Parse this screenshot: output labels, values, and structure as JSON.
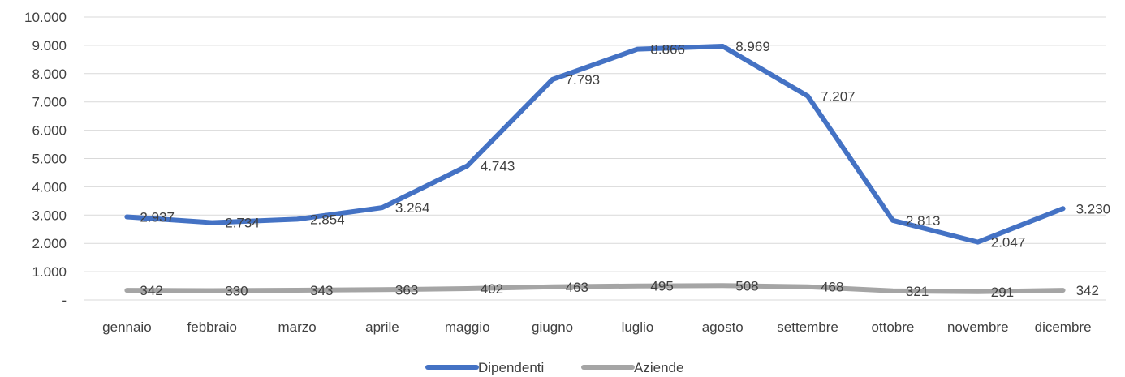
{
  "chart_data": {
    "type": "line",
    "title": "",
    "xlabel": "",
    "ylabel": "",
    "categories": [
      "gennaio",
      "febbraio",
      "marzo",
      "aprile",
      "maggio",
      "giugno",
      "luglio",
      "agosto",
      "settembre",
      "ottobre",
      "novembre",
      "dicembre"
    ],
    "ylim": [
      0,
      10000
    ],
    "yticks": [
      0,
      1000,
      2000,
      3000,
      4000,
      5000,
      6000,
      7000,
      8000,
      9000,
      10000
    ],
    "ytick_labels": [
      "-",
      "1.000",
      "2.000",
      "3.000",
      "4.000",
      "5.000",
      "6.000",
      "7.000",
      "8.000",
      "9.000",
      "10.000"
    ],
    "grid": true,
    "legend_position": "bottom",
    "series": [
      {
        "name": "Dipendenti",
        "color": "#4472c4",
        "values": [
          2937,
          2734,
          2854,
          3264,
          4743,
          7793,
          8866,
          8969,
          7207,
          2813,
          2047,
          3230
        ],
        "labels": [
          "2.937",
          "2.734",
          "2.854",
          "3.264",
          "4.743",
          "7.793",
          "8.866",
          "8.969",
          "7.207",
          "2.813",
          "2.047",
          "3.230"
        ]
      },
      {
        "name": "Aziende",
        "color": "#a5a5a5",
        "values": [
          342,
          330,
          343,
          363,
          402,
          463,
          495,
          508,
          468,
          321,
          291,
          342
        ],
        "labels": [
          "342",
          "330",
          "343",
          "363",
          "402",
          "463",
          "495",
          "508",
          "468",
          "321",
          "291",
          "342"
        ]
      }
    ]
  }
}
